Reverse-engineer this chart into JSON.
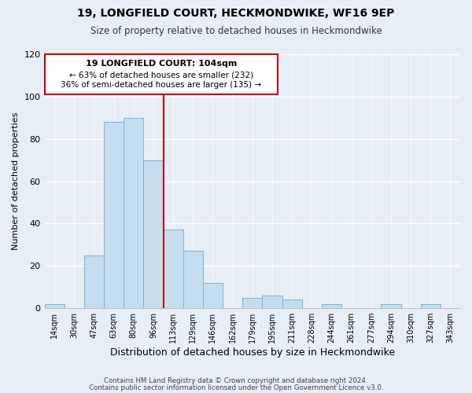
{
  "title": "19, LONGFIELD COURT, HECKMONDWIKE, WF16 9EP",
  "subtitle": "Size of property relative to detached houses in Heckmondwike",
  "xlabel": "Distribution of detached houses by size in Heckmondwike",
  "ylabel": "Number of detached properties",
  "bar_labels": [
    "14sqm",
    "30sqm",
    "47sqm",
    "63sqm",
    "80sqm",
    "96sqm",
    "113sqm",
    "129sqm",
    "146sqm",
    "162sqm",
    "179sqm",
    "195sqm",
    "211sqm",
    "228sqm",
    "244sqm",
    "261sqm",
    "277sqm",
    "294sqm",
    "310sqm",
    "327sqm",
    "343sqm"
  ],
  "bar_values": [
    2,
    0,
    25,
    88,
    90,
    70,
    37,
    27,
    12,
    0,
    5,
    6,
    4,
    0,
    2,
    0,
    0,
    2,
    0,
    2,
    0
  ],
  "bar_color": "#c6ddef",
  "bar_edge_color": "#7ab3d3",
  "vline_color": "#cc0000",
  "annotation_title": "19 LONGFIELD COURT: 104sqm",
  "annotation_line1": "← 63% of detached houses are smaller (232)",
  "annotation_line2": "36% of semi-detached houses are larger (135) →",
  "annotation_box_color": "#cc0000",
  "ylim": [
    0,
    120
  ],
  "yticks": [
    0,
    20,
    40,
    60,
    80,
    100,
    120
  ],
  "footer1": "Contains HM Land Registry data © Crown copyright and database right 2024.",
  "footer2": "Contains public sector information licensed under the Open Government Licence v3.0.",
  "background_color": "#e8eef5"
}
